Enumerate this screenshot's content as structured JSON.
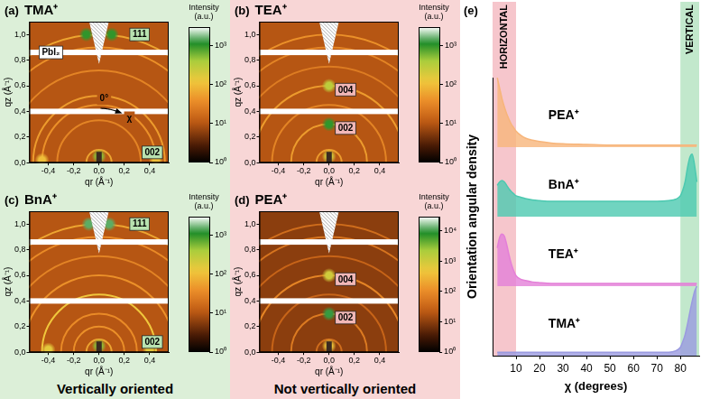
{
  "chart_data": [
    {
      "type": "heatmap",
      "letter": "(a)",
      "title": "TMA⁺",
      "x_label": "qr (Å⁻¹)",
      "y_label": "qz (Å⁻¹)",
      "xlim": [
        -0.55,
        0.55
      ],
      "xticks": [
        {
          "value": -0.4,
          "label": "-0,4"
        },
        {
          "value": -0.2,
          "label": "-0,2"
        },
        {
          "value": 0,
          "label": "0,0"
        },
        {
          "value": 0.2,
          "label": "0,2"
        },
        {
          "value": 0.4,
          "label": "0,4"
        }
      ],
      "ylim": [
        0,
        1.1
      ],
      "yticks": [
        {
          "value": 0,
          "label": "0,0"
        },
        {
          "value": 0.2,
          "label": "0,2"
        },
        {
          "value": 0.4,
          "label": "0,4"
        },
        {
          "value": 0.6,
          "label": "0,6"
        },
        {
          "value": 0.8,
          "label": "0,8"
        },
        {
          "value": 1.0,
          "label": "1,0"
        }
      ],
      "background_intensity": 10,
      "rings": [
        {
          "q": 0.1,
          "intensity": 60
        },
        {
          "q": 0.33,
          "intensity": 30
        },
        {
          "q": 0.45,
          "intensity": 40
        },
        {
          "q": 0.52,
          "intensity": 50
        },
        {
          "q": 0.72,
          "intensity": 30
        },
        {
          "q": 0.9,
          "intensity": 40
        },
        {
          "q": 1.0,
          "intensity": 60
        }
      ],
      "spots": [
        {
          "qr": -0.1,
          "qz": 1.0,
          "intensity": 1000
        },
        {
          "qr": 0.1,
          "qz": 1.0,
          "intensity": 1000
        },
        {
          "qr": 0,
          "qz": 0.05,
          "intensity": 500
        },
        {
          "qr": 0.45,
          "qz": 0.02,
          "intensity": 100
        },
        {
          "qr": -0.45,
          "qz": 0.02,
          "intensity": 100
        }
      ],
      "gaps_qz": [
        0.4,
        0.86
      ],
      "annotations": [
        {
          "text": "111",
          "qr": 0.32,
          "qz": 1.0,
          "color": "#b8e2b0"
        },
        {
          "text": "PbI₂",
          "qr": -0.38,
          "qz": 0.86,
          "color": "#ffffff"
        },
        {
          "text": "0°",
          "qr": 0.04,
          "qz": 0.5
        },
        {
          "text": "χ",
          "qr": 0.24,
          "qz": 0.35,
          "marker": "arrow"
        },
        {
          "text": "002",
          "qr": 0.42,
          "qz": 0.08,
          "color": "#b8e2b0"
        }
      ],
      "colorbar": {
        "label": "Intensity (a.u.)",
        "log": true,
        "range": [
          1,
          3000
        ],
        "ticks": [
          {
            "value": 1,
            "label": "10⁰"
          },
          {
            "value": 10,
            "label": "10¹"
          },
          {
            "value": 100,
            "label": "10²"
          },
          {
            "value": 1000,
            "label": "10³"
          }
        ]
      }
    },
    {
      "type": "heatmap",
      "letter": "(b)",
      "title": "TEA⁺",
      "x_label": "qr (Å⁻¹)",
      "y_label": "qz (Å⁻¹)",
      "xlim": [
        -0.55,
        0.55
      ],
      "xticks": [
        {
          "value": -0.4,
          "label": "-0,4"
        },
        {
          "value": -0.2,
          "label": "-0,2"
        },
        {
          "value": 0,
          "label": "0,0"
        },
        {
          "value": 0.2,
          "label": "0,2"
        },
        {
          "value": 0.4,
          "label": "0,4"
        }
      ],
      "ylim": [
        0,
        1.1
      ],
      "yticks": [
        {
          "value": 0,
          "label": "0,0"
        },
        {
          "value": 0.2,
          "label": "0,2"
        },
        {
          "value": 0.4,
          "label": "0,4"
        },
        {
          "value": 0.6,
          "label": "0,6"
        },
        {
          "value": 0.8,
          "label": "0,8"
        },
        {
          "value": 1.0,
          "label": "1,0"
        }
      ],
      "background_intensity": 10,
      "rings": [
        {
          "q": 0.1,
          "intensity": 50
        },
        {
          "q": 0.3,
          "intensity": 50
        },
        {
          "q": 0.45,
          "intensity": 30
        },
        {
          "q": 0.6,
          "intensity": 50
        },
        {
          "q": 0.75,
          "intensity": 25
        },
        {
          "q": 0.9,
          "intensity": 30
        },
        {
          "q": 1.0,
          "intensity": 40
        }
      ],
      "spots": [
        {
          "qr": 0,
          "qz": 0.3,
          "intensity": 1000
        },
        {
          "qr": 0,
          "qz": 0.6,
          "intensity": 300
        },
        {
          "qr": 0,
          "qz": 0.05,
          "intensity": 200
        }
      ],
      "gaps_qz": [
        0.4,
        0.86
      ],
      "annotations": [
        {
          "text": "004",
          "qr": 0.13,
          "qz": 0.57,
          "color": "#f2b8b8"
        },
        {
          "text": "002",
          "qr": 0.13,
          "qz": 0.27,
          "color": "#f2b8b8"
        }
      ],
      "colorbar": {
        "label": "Intensity (a.u.)",
        "log": true,
        "range": [
          1,
          3000
        ],
        "ticks": [
          {
            "value": 1,
            "label": "10⁰"
          },
          {
            "value": 10,
            "label": "10¹"
          },
          {
            "value": 100,
            "label": "10²"
          },
          {
            "value": 1000,
            "label": "10³"
          }
        ]
      }
    },
    {
      "type": "heatmap",
      "letter": "(c)",
      "title": "BnA⁺",
      "x_label": "qr (Å⁻¹)",
      "y_label": "qz (Å⁻¹)",
      "xlim": [
        -0.55,
        0.55
      ],
      "xticks": [
        {
          "value": -0.4,
          "label": "-0,4"
        },
        {
          "value": -0.2,
          "label": "-0,2"
        },
        {
          "value": 0,
          "label": "0,0"
        },
        {
          "value": 0.2,
          "label": "0,2"
        },
        {
          "value": 0.4,
          "label": "0,4"
        }
      ],
      "ylim": [
        0,
        1.1
      ],
      "yticks": [
        {
          "value": 0,
          "label": "0,0"
        },
        {
          "value": 0.2,
          "label": "0,2"
        },
        {
          "value": 0.4,
          "label": "0,4"
        },
        {
          "value": 0.6,
          "label": "0,6"
        },
        {
          "value": 0.8,
          "label": "0,8"
        },
        {
          "value": 1.0,
          "label": "1,0"
        }
      ],
      "background_intensity": 10,
      "rings": [
        {
          "q": 0.1,
          "intensity": 60
        },
        {
          "q": 0.2,
          "intensity": 40
        },
        {
          "q": 0.3,
          "intensity": 35
        },
        {
          "q": 0.45,
          "intensity": 120
        },
        {
          "q": 0.6,
          "intensity": 40
        },
        {
          "q": 0.75,
          "intensity": 30
        },
        {
          "q": 0.9,
          "intensity": 35
        },
        {
          "q": 1.0,
          "intensity": 60
        }
      ],
      "spots": [
        {
          "qr": -0.08,
          "qz": 1.0,
          "intensity": 1500
        },
        {
          "qr": 0.08,
          "qz": 1.0,
          "intensity": 1500
        },
        {
          "qr": 0,
          "qz": 0.05,
          "intensity": 500
        },
        {
          "qr": 0.4,
          "qz": 0.02,
          "intensity": 150
        },
        {
          "qr": -0.4,
          "qz": 0.02,
          "intensity": 150
        }
      ],
      "gaps_qz": [
        0.4,
        0.86
      ],
      "annotations": [
        {
          "text": "111",
          "qr": 0.32,
          "qz": 1.0,
          "color": "#b8e2b0"
        },
        {
          "text": "002",
          "qr": 0.42,
          "qz": 0.08,
          "color": "#b8e2b0"
        }
      ],
      "colorbar": {
        "label": "Intensity (a.u.)",
        "log": true,
        "range": [
          1,
          3000
        ],
        "ticks": [
          {
            "value": 1,
            "label": "10⁰"
          },
          {
            "value": 10,
            "label": "10¹"
          },
          {
            "value": 100,
            "label": "10²"
          },
          {
            "value": 1000,
            "label": "10³"
          }
        ]
      }
    },
    {
      "type": "heatmap",
      "letter": "(d)",
      "title": "PEA⁺",
      "x_label": "qr (Å⁻¹)",
      "y_label": "qz (Å⁻¹)",
      "xlim": [
        -0.55,
        0.55
      ],
      "xticks": [
        {
          "value": -0.4,
          "label": "-0,4"
        },
        {
          "value": -0.2,
          "label": "-0,2"
        },
        {
          "value": 0,
          "label": "0,0"
        },
        {
          "value": 0.2,
          "label": "0,2"
        },
        {
          "value": 0.4,
          "label": "0,4"
        }
      ],
      "ylim": [
        0,
        1.1
      ],
      "yticks": [
        {
          "value": 0,
          "label": "0,0"
        },
        {
          "value": 0.2,
          "label": "0,2"
        },
        {
          "value": 0.4,
          "label": "0,4"
        },
        {
          "value": 0.6,
          "label": "0,6"
        },
        {
          "value": 0.8,
          "label": "0,8"
        },
        {
          "value": 1.0,
          "label": "1,0"
        }
      ],
      "background_intensity": 10,
      "rings": [
        {
          "q": 0.1,
          "intensity": 40
        },
        {
          "q": 0.3,
          "intensity": 60
        },
        {
          "q": 0.45,
          "intensity": 30
        },
        {
          "q": 0.6,
          "intensity": 80
        },
        {
          "q": 0.75,
          "intensity": 30
        },
        {
          "q": 0.9,
          "intensity": 50
        },
        {
          "q": 1.0,
          "intensity": 40
        }
      ],
      "spots": [
        {
          "qr": 0,
          "qz": 0.3,
          "intensity": 10000
        },
        {
          "qr": 0,
          "qz": 0.6,
          "intensity": 1000
        },
        {
          "qr": 0,
          "qz": 0.05,
          "intensity": 500
        }
      ],
      "gaps_qz": [
        0.4,
        0.86
      ],
      "annotations": [
        {
          "text": "004",
          "qr": 0.13,
          "qz": 0.57,
          "color": "#f2b8b8"
        },
        {
          "text": "002",
          "qr": 0.13,
          "qz": 0.27,
          "color": "#f2b8b8"
        }
      ],
      "colorbar": {
        "label": "Intensity (a.u.)",
        "log": true,
        "range": [
          1,
          30000
        ],
        "ticks": [
          {
            "value": 1,
            "label": "10⁰"
          },
          {
            "value": 10,
            "label": "10¹"
          },
          {
            "value": 100,
            "label": "10²"
          },
          {
            "value": 1000,
            "label": "10³"
          },
          {
            "value": 10000,
            "label": "10⁴"
          }
        ]
      }
    },
    {
      "type": "line",
      "letter": "(e)",
      "x_label": "χ (degrees)",
      "y_label": "Orientation angular density",
      "x": [
        2,
        3,
        4,
        5,
        6,
        7,
        8,
        9,
        10,
        12,
        14,
        17,
        20,
        25,
        30,
        40,
        50,
        60,
        70,
        75,
        78,
        80,
        81,
        82,
        83,
        84,
        85,
        86,
        87
      ],
      "xlim": [
        0,
        88
      ],
      "xticks": [
        10,
        20,
        30,
        40,
        50,
        60,
        70,
        80
      ],
      "ylim": [
        0,
        1
      ],
      "tick_labels": "x",
      "series": [
        {
          "name": "TMA⁺",
          "color": "#9a9ae0",
          "values": [
            0.05,
            0.05,
            0.05,
            0.05,
            0.05,
            0.05,
            0.05,
            0.05,
            0.05,
            0.05,
            0.05,
            0.05,
            0.05,
            0.05,
            0.05,
            0.05,
            0.05,
            0.05,
            0.05,
            0.05,
            0.07,
            0.12,
            0.2,
            0.3,
            0.45,
            0.62,
            0.78,
            0.92,
            1.0
          ]
        },
        {
          "name": "TEA⁺",
          "color": "#e47fd8",
          "values": [
            0.55,
            0.7,
            0.75,
            0.72,
            0.6,
            0.45,
            0.32,
            0.22,
            0.15,
            0.1,
            0.08,
            0.06,
            0.05,
            0.04,
            0.04,
            0.04,
            0.04,
            0.04,
            0.04,
            0.04,
            0.04,
            0.04,
            0.04,
            0.04,
            0.04,
            0.04,
            0.04,
            0.04,
            0.04
          ]
        },
        {
          "name": "BnA⁺",
          "color": "#4cc9b0",
          "values": [
            0.45,
            0.5,
            0.52,
            0.5,
            0.45,
            0.4,
            0.36,
            0.33,
            0.3,
            0.28,
            0.26,
            0.24,
            0.23,
            0.22,
            0.22,
            0.22,
            0.22,
            0.22,
            0.22,
            0.23,
            0.25,
            0.3,
            0.38,
            0.5,
            0.7,
            0.85,
            0.9,
            0.75,
            0.5
          ]
        },
        {
          "name": "PEA⁺",
          "color": "#f7b57a",
          "values": [
            1.0,
            0.85,
            0.7,
            0.58,
            0.48,
            0.4,
            0.33,
            0.28,
            0.23,
            0.17,
            0.13,
            0.1,
            0.08,
            0.06,
            0.05,
            0.04,
            0.03,
            0.03,
            0.03,
            0.03,
            0.03,
            0.03,
            0.03,
            0.03,
            0.03,
            0.03,
            0.03,
            0.03,
            0.03
          ]
        }
      ],
      "bands": [
        {
          "label": "HORIZONTAL",
          "range": [
            0,
            10
          ],
          "color": "#f6c6cc"
        },
        {
          "label": "VERTICAL",
          "range": [
            80,
            88
          ],
          "color": "#c2e8cc"
        }
      ]
    }
  ],
  "captions": [
    {
      "text": "Vertically oriented",
      "color": "#dcefd8"
    },
    {
      "text": "Not vertically oriented",
      "color": "#f8d6d6"
    }
  ]
}
